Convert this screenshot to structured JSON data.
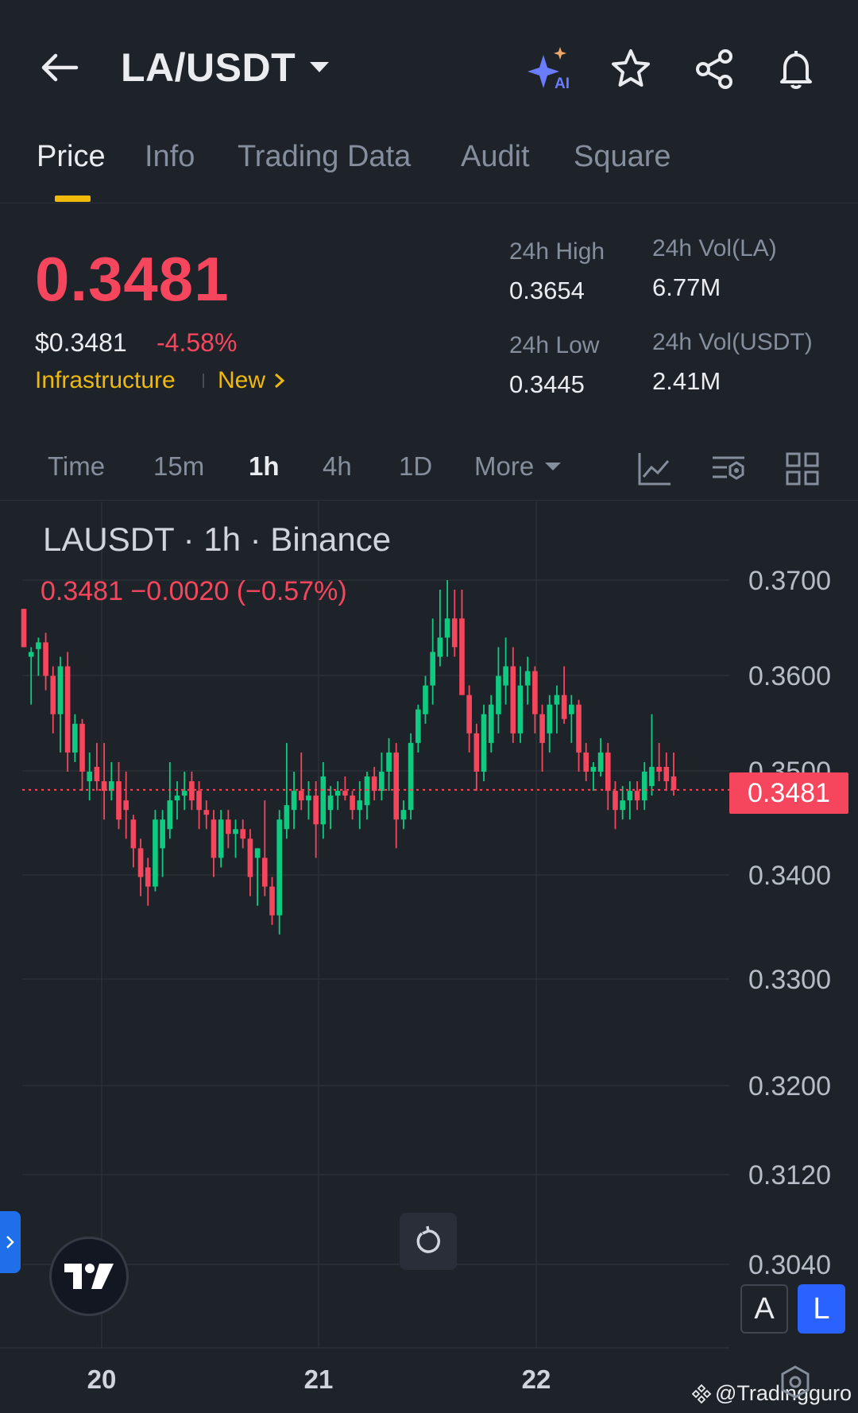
{
  "header": {
    "pair": "LA/USDT",
    "icons": [
      "back-arrow-icon",
      "ai-sparkle-icon",
      "star-icon",
      "share-icon",
      "bell-icon"
    ],
    "ai_label": "AI"
  },
  "tabs": [
    {
      "label": "Price",
      "active": true
    },
    {
      "label": "Info",
      "active": false
    },
    {
      "label": "Trading Data",
      "active": false
    },
    {
      "label": "Audit",
      "active": false
    },
    {
      "label": "Square",
      "active": false
    }
  ],
  "price": {
    "last": "0.3481",
    "usd": "$0.3481",
    "change_pct": "-4.58%",
    "tag_category": "Infrastructure",
    "tag_new": "New"
  },
  "stats": {
    "high_label": "24h High",
    "high_value": "0.3654",
    "low_label": "24h Low",
    "low_value": "0.3445",
    "vol_base_label": "24h Vol(LA)",
    "vol_base_value": "6.77M",
    "vol_quote_label": "24h Vol(USDT)",
    "vol_quote_value": "2.41M"
  },
  "intervals": [
    {
      "label": "Time",
      "active": false
    },
    {
      "label": "15m",
      "active": false
    },
    {
      "label": "1h",
      "active": true
    },
    {
      "label": "4h",
      "active": false
    },
    {
      "label": "1D",
      "active": false
    },
    {
      "label": "More",
      "active": false
    }
  ],
  "chart": {
    "legend_title": "LAUSDT · 1h · Binance",
    "legend_values": "0.3481  −0.0020 (−0.57%)",
    "current_price_tag": "0.3481",
    "scale_a": "A",
    "scale_l": "L",
    "watermark": "@Tradingguro"
  },
  "colors": {
    "up": "#0ecb81",
    "down": "#f6465d",
    "accent": "#f0b90b",
    "bg": "#1e2329"
  },
  "chart_data": {
    "type": "candlestick",
    "y_ticks": [
      "0.3700",
      "0.3600",
      "0.3500",
      "0.3400",
      "0.3300",
      "0.3200",
      "0.3120",
      "0.3040"
    ],
    "x_ticks": [
      "20",
      "21",
      "22"
    ],
    "last_price": 0.3481,
    "candles": [
      {
        "o": 0.367,
        "h": 0.367,
        "l": 0.363,
        "c": 0.363
      },
      {
        "o": 0.362,
        "h": 0.363,
        "l": 0.357,
        "c": 0.3625
      },
      {
        "o": 0.3628,
        "h": 0.364,
        "l": 0.36,
        "c": 0.3635
      },
      {
        "o": 0.3635,
        "h": 0.3645,
        "l": 0.3585,
        "c": 0.36
      },
      {
        "o": 0.36,
        "h": 0.361,
        "l": 0.354,
        "c": 0.356
      },
      {
        "o": 0.356,
        "h": 0.362,
        "l": 0.352,
        "c": 0.361
      },
      {
        "o": 0.361,
        "h": 0.3625,
        "l": 0.35,
        "c": 0.352
      },
      {
        "o": 0.352,
        "h": 0.356,
        "l": 0.351,
        "c": 0.355
      },
      {
        "o": 0.355,
        "h": 0.3555,
        "l": 0.348,
        "c": 0.35
      },
      {
        "o": 0.349,
        "h": 0.352,
        "l": 0.347,
        "c": 0.35
      },
      {
        "o": 0.3505,
        "h": 0.353,
        "l": 0.348,
        "c": 0.349
      },
      {
        "o": 0.349,
        "h": 0.353,
        "l": 0.345,
        "c": 0.348
      },
      {
        "o": 0.348,
        "h": 0.351,
        "l": 0.347,
        "c": 0.349
      },
      {
        "o": 0.349,
        "h": 0.351,
        "l": 0.344,
        "c": 0.345
      },
      {
        "o": 0.347,
        "h": 0.35,
        "l": 0.343,
        "c": 0.346
      },
      {
        "o": 0.345,
        "h": 0.3455,
        "l": 0.34,
        "c": 0.342
      },
      {
        "o": 0.342,
        "h": 0.343,
        "l": 0.337,
        "c": 0.339
      },
      {
        "o": 0.34,
        "h": 0.341,
        "l": 0.336,
        "c": 0.338
      },
      {
        "o": 0.338,
        "h": 0.346,
        "l": 0.3375,
        "c": 0.345
      },
      {
        "o": 0.342,
        "h": 0.346,
        "l": 0.339,
        "c": 0.345
      },
      {
        "o": 0.344,
        "h": 0.351,
        "l": 0.343,
        "c": 0.347
      },
      {
        "o": 0.347,
        "h": 0.349,
        "l": 0.345,
        "c": 0.3475
      },
      {
        "o": 0.3475,
        "h": 0.35,
        "l": 0.346,
        "c": 0.348
      },
      {
        "o": 0.349,
        "h": 0.35,
        "l": 0.346,
        "c": 0.347
      },
      {
        "o": 0.348,
        "h": 0.349,
        "l": 0.344,
        "c": 0.346
      },
      {
        "o": 0.346,
        "h": 0.347,
        "l": 0.344,
        "c": 0.3455
      },
      {
        "o": 0.345,
        "h": 0.346,
        "l": 0.339,
        "c": 0.341
      },
      {
        "o": 0.341,
        "h": 0.346,
        "l": 0.34,
        "c": 0.345
      },
      {
        "o": 0.345,
        "h": 0.346,
        "l": 0.342,
        "c": 0.3435
      },
      {
        "o": 0.3435,
        "h": 0.345,
        "l": 0.341,
        "c": 0.344
      },
      {
        "o": 0.344,
        "h": 0.345,
        "l": 0.342,
        "c": 0.343
      },
      {
        "o": 0.343,
        "h": 0.344,
        "l": 0.337,
        "c": 0.339
      },
      {
        "o": 0.341,
        "h": 0.342,
        "l": 0.336,
        "c": 0.342
      },
      {
        "o": 0.341,
        "h": 0.347,
        "l": 0.337,
        "c": 0.338
      },
      {
        "o": 0.338,
        "h": 0.339,
        "l": 0.334,
        "c": 0.335
      },
      {
        "o": 0.335,
        "h": 0.346,
        "l": 0.333,
        "c": 0.345
      },
      {
        "o": 0.344,
        "h": 0.353,
        "l": 0.343,
        "c": 0.3465
      },
      {
        "o": 0.346,
        "h": 0.35,
        "l": 0.344,
        "c": 0.348
      },
      {
        "o": 0.348,
        "h": 0.352,
        "l": 0.346,
        "c": 0.347
      },
      {
        "o": 0.347,
        "h": 0.349,
        "l": 0.345,
        "c": 0.3475
      },
      {
        "o": 0.3475,
        "h": 0.349,
        "l": 0.341,
        "c": 0.3445
      },
      {
        "o": 0.3445,
        "h": 0.351,
        "l": 0.343,
        "c": 0.3495
      },
      {
        "o": 0.346,
        "h": 0.3485,
        "l": 0.344,
        "c": 0.3475
      },
      {
        "o": 0.3475,
        "h": 0.349,
        "l": 0.346,
        "c": 0.348
      },
      {
        "o": 0.348,
        "h": 0.3495,
        "l": 0.347,
        "c": 0.3475
      },
      {
        "o": 0.3475,
        "h": 0.348,
        "l": 0.345,
        "c": 0.346
      },
      {
        "o": 0.346,
        "h": 0.349,
        "l": 0.344,
        "c": 0.347
      },
      {
        "o": 0.3465,
        "h": 0.35,
        "l": 0.345,
        "c": 0.3495
      },
      {
        "o": 0.3495,
        "h": 0.3505,
        "l": 0.347,
        "c": 0.348
      },
      {
        "o": 0.348,
        "h": 0.352,
        "l": 0.347,
        "c": 0.35
      },
      {
        "o": 0.35,
        "h": 0.3535,
        "l": 0.348,
        "c": 0.352
      },
      {
        "o": 0.352,
        "h": 0.353,
        "l": 0.342,
        "c": 0.345
      },
      {
        "o": 0.345,
        "h": 0.347,
        "l": 0.344,
        "c": 0.346
      },
      {
        "o": 0.346,
        "h": 0.354,
        "l": 0.345,
        "c": 0.353
      },
      {
        "o": 0.353,
        "h": 0.357,
        "l": 0.352,
        "c": 0.3565
      },
      {
        "o": 0.356,
        "h": 0.36,
        "l": 0.355,
        "c": 0.359
      },
      {
        "o": 0.359,
        "h": 0.366,
        "l": 0.357,
        "c": 0.3625
      },
      {
        "o": 0.362,
        "h": 0.369,
        "l": 0.361,
        "c": 0.364
      },
      {
        "o": 0.364,
        "h": 0.37,
        "l": 0.362,
        "c": 0.366
      },
      {
        "o": 0.366,
        "h": 0.369,
        "l": 0.362,
        "c": 0.363
      },
      {
        "o": 0.366,
        "h": 0.369,
        "l": 0.358,
        "c": 0.358
      },
      {
        "o": 0.358,
        "h": 0.359,
        "l": 0.352,
        "c": 0.354
      },
      {
        "o": 0.354,
        "h": 0.355,
        "l": 0.348,
        "c": 0.35
      },
      {
        "o": 0.35,
        "h": 0.357,
        "l": 0.349,
        "c": 0.356
      },
      {
        "o": 0.353,
        "h": 0.358,
        "l": 0.352,
        "c": 0.357
      },
      {
        "o": 0.356,
        "h": 0.363,
        "l": 0.354,
        "c": 0.36
      },
      {
        "o": 0.359,
        "h": 0.364,
        "l": 0.357,
        "c": 0.361
      },
      {
        "o": 0.361,
        "h": 0.363,
        "l": 0.353,
        "c": 0.354
      },
      {
        "o": 0.354,
        "h": 0.361,
        "l": 0.353,
        "c": 0.359
      },
      {
        "o": 0.359,
        "h": 0.362,
        "l": 0.357,
        "c": 0.3605
      },
      {
        "o": 0.3605,
        "h": 0.361,
        "l": 0.354,
        "c": 0.356
      },
      {
        "o": 0.356,
        "h": 0.357,
        "l": 0.35,
        "c": 0.353
      },
      {
        "o": 0.354,
        "h": 0.358,
        "l": 0.352,
        "c": 0.357
      },
      {
        "o": 0.357,
        "h": 0.359,
        "l": 0.354,
        "c": 0.358
      },
      {
        "o": 0.358,
        "h": 0.361,
        "l": 0.355,
        "c": 0.3555
      },
      {
        "o": 0.356,
        "h": 0.358,
        "l": 0.353,
        "c": 0.357
      },
      {
        "o": 0.357,
        "h": 0.3575,
        "l": 0.35,
        "c": 0.352
      },
      {
        "o": 0.352,
        "h": 0.353,
        "l": 0.349,
        "c": 0.35
      },
      {
        "o": 0.35,
        "h": 0.351,
        "l": 0.348,
        "c": 0.3505
      },
      {
        "o": 0.35,
        "h": 0.3535,
        "l": 0.3495,
        "c": 0.352
      },
      {
        "o": 0.352,
        "h": 0.353,
        "l": 0.346,
        "c": 0.348
      },
      {
        "o": 0.348,
        "h": 0.349,
        "l": 0.344,
        "c": 0.346
      },
      {
        "o": 0.346,
        "h": 0.3485,
        "l": 0.345,
        "c": 0.347
      },
      {
        "o": 0.347,
        "h": 0.349,
        "l": 0.345,
        "c": 0.348
      },
      {
        "o": 0.348,
        "h": 0.349,
        "l": 0.346,
        "c": 0.347
      },
      {
        "o": 0.347,
        "h": 0.351,
        "l": 0.346,
        "c": 0.35
      },
      {
        "o": 0.3485,
        "h": 0.356,
        "l": 0.3475,
        "c": 0.3505
      },
      {
        "o": 0.3505,
        "h": 0.353,
        "l": 0.349,
        "c": 0.35
      },
      {
        "o": 0.3505,
        "h": 0.352,
        "l": 0.348,
        "c": 0.349
      },
      {
        "o": 0.3495,
        "h": 0.352,
        "l": 0.3475,
        "c": 0.3481
      }
    ]
  }
}
